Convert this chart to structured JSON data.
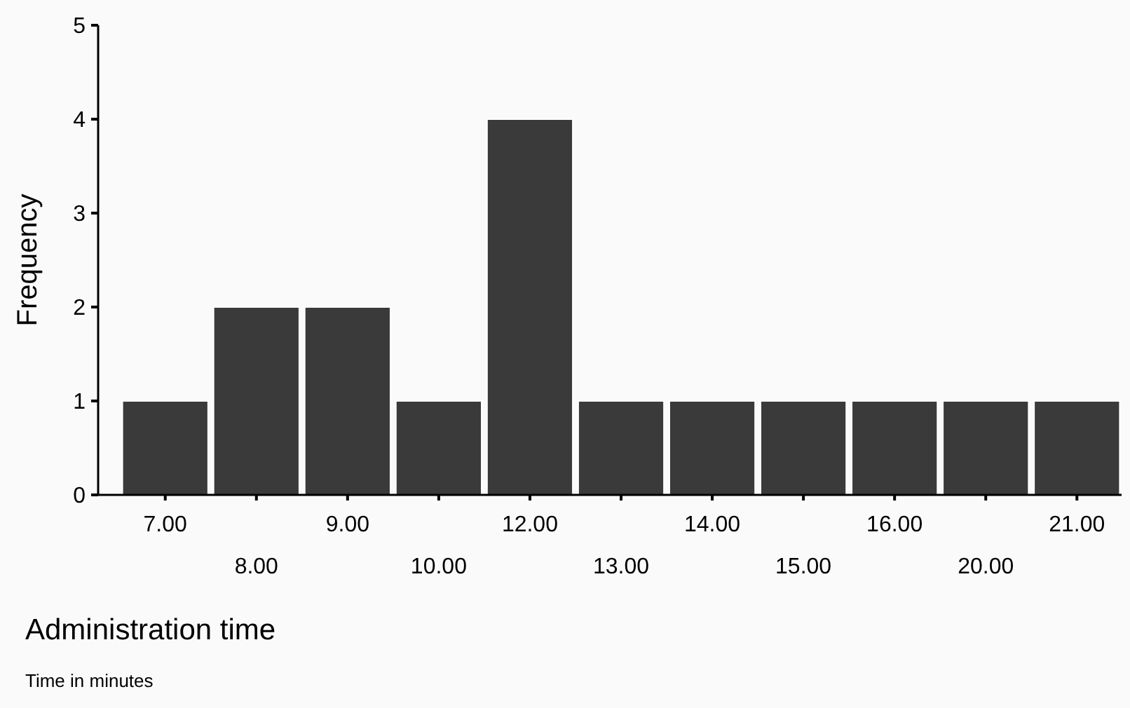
{
  "chart_data": {
    "type": "bar",
    "xlabel": "Administration time",
    "ylabel": "Frequency",
    "annotations": [
      "Time in minutes"
    ],
    "categories": [
      "7.00",
      "8.00",
      "9.00",
      "10.00",
      "12.00",
      "13.00",
      "14.00",
      "15.00",
      "16.00",
      "20.00",
      "21.00"
    ],
    "values": [
      1,
      2,
      2,
      1,
      4,
      1,
      1,
      1,
      1,
      1,
      1
    ],
    "color": "#3a3a3a",
    "ylim": [
      0,
      5
    ],
    "yticks": [
      0,
      1,
      2,
      3,
      4,
      5
    ],
    "grid": false
  }
}
